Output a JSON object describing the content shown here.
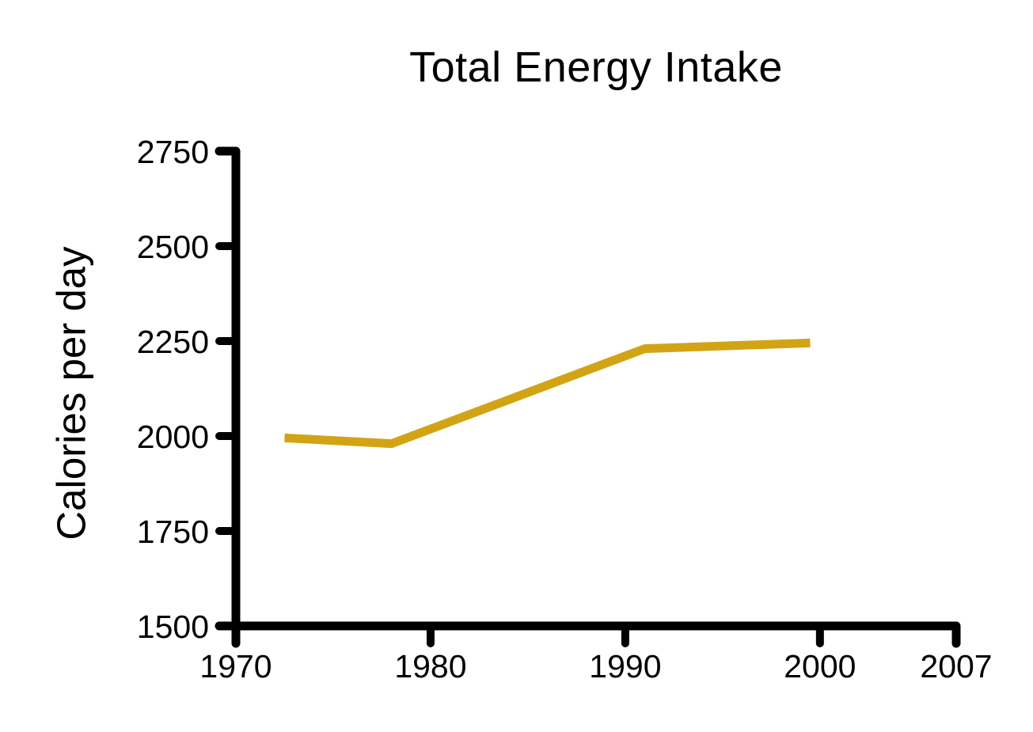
{
  "chart_data": {
    "type": "line",
    "title": "Total Energy Intake",
    "xlabel": "",
    "ylabel": "Calories per day",
    "xlim": [
      1970,
      2007
    ],
    "ylim": [
      1500,
      2750
    ],
    "x_ticks": [
      1970,
      1980,
      1990,
      2000,
      2007
    ],
    "y_ticks": [
      1500,
      1750,
      2000,
      2250,
      2500,
      2750
    ],
    "grid": false,
    "legend_position": "none",
    "background_color": "#FFFFFF",
    "axis_color": "#000000",
    "series": [
      {
        "color": "#D2A415",
        "points": [
          {
            "x": 1972.5,
            "y": 1995
          },
          {
            "x": 1978,
            "y": 1980
          },
          {
            "x": 1991,
            "y": 2230
          },
          {
            "x": 1999.5,
            "y": 2245
          }
        ]
      }
    ]
  }
}
